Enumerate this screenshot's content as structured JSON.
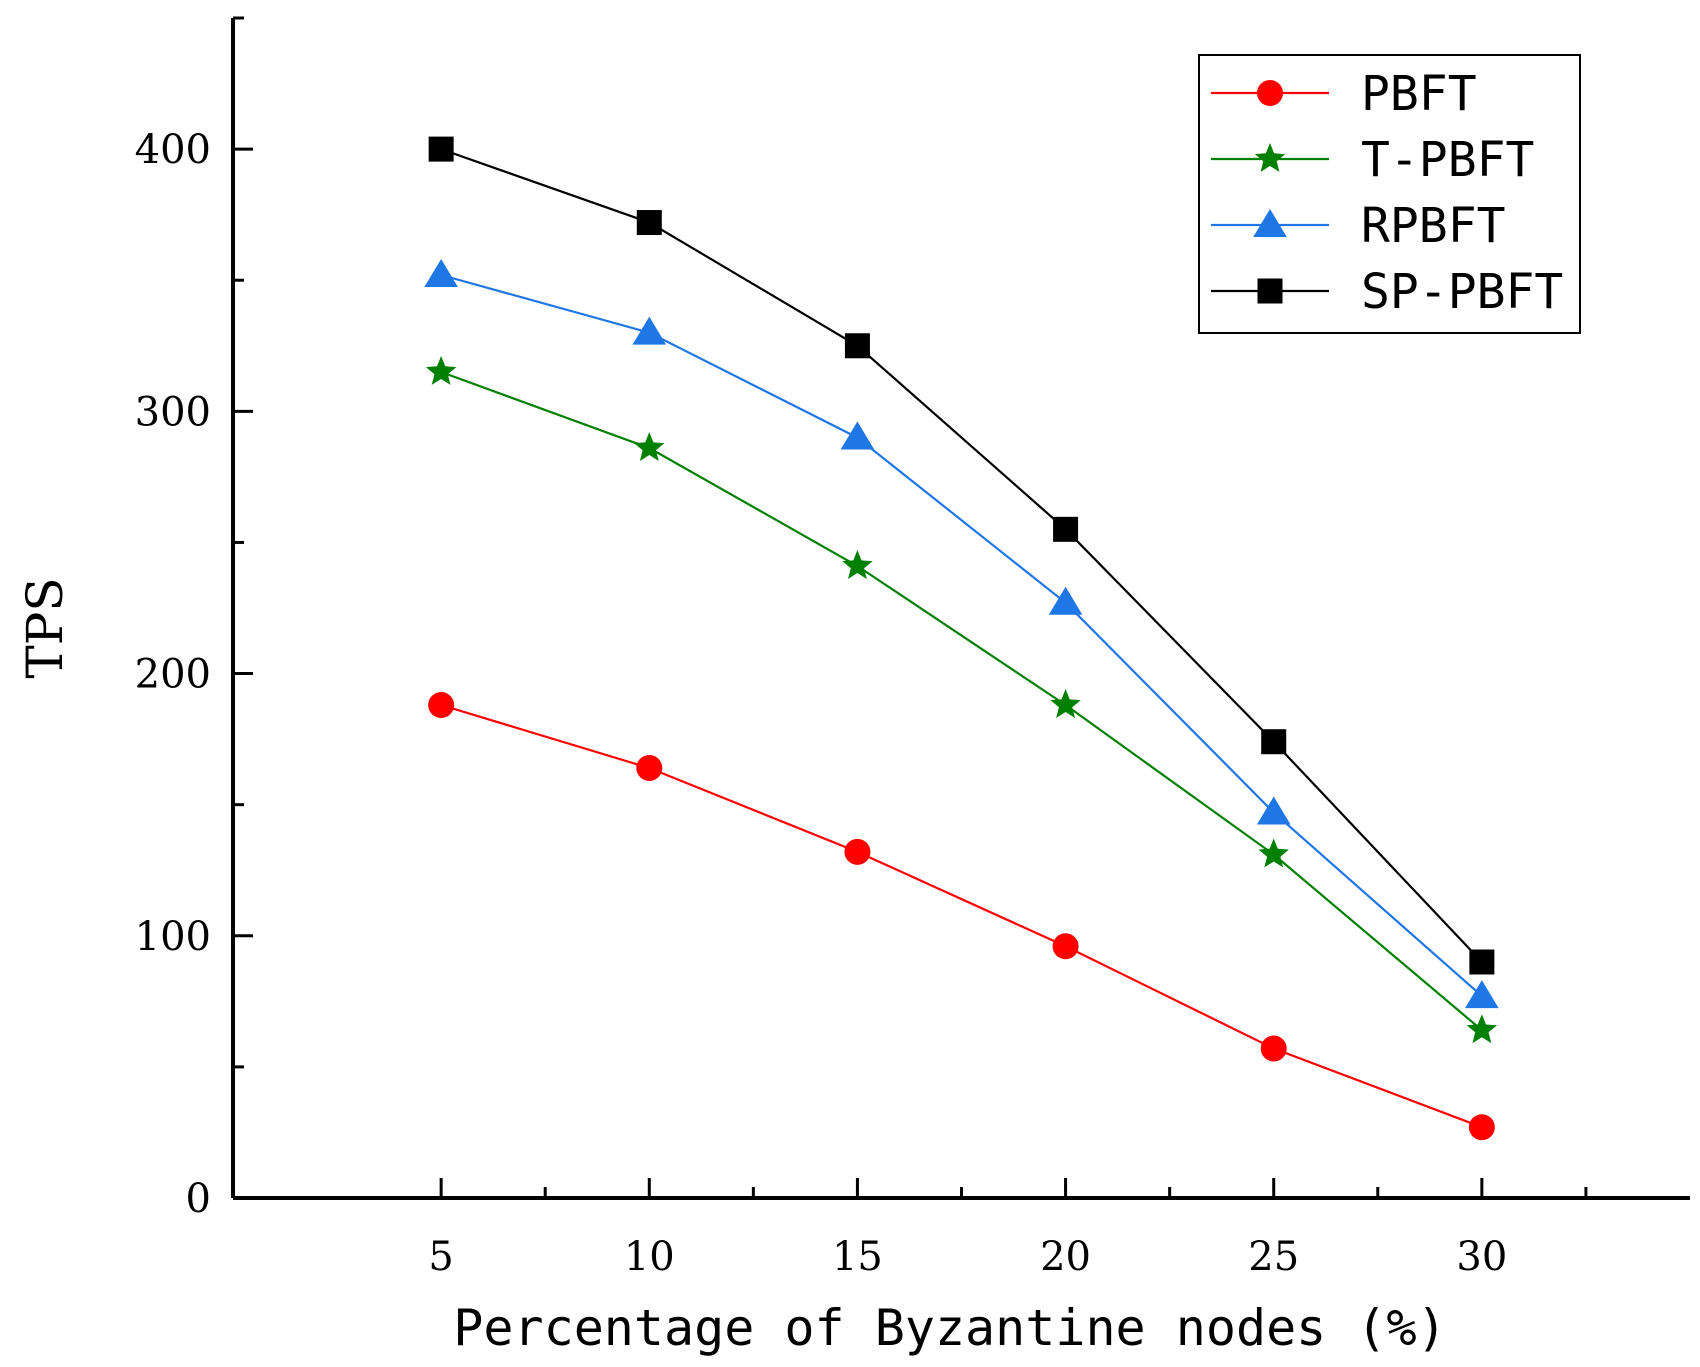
{
  "chart_data": {
    "type": "line",
    "title": "",
    "xlabel": "Percentage of Byzantine nodes (%)",
    "ylabel": "TPS",
    "x": [
      5,
      10,
      15,
      20,
      25,
      30
    ],
    "xticks": [
      "5",
      "10",
      "15",
      "20",
      "25",
      "30"
    ],
    "yticks": [
      "0",
      "100",
      "200",
      "300",
      "400"
    ],
    "xlim": [
      0,
      35
    ],
    "ylim": [
      0,
      450
    ],
    "legend_position": "top-right",
    "series": [
      {
        "name": "PBFT",
        "values": [
          188,
          164,
          132,
          96,
          57,
          27
        ],
        "color": "#ff0000",
        "marker": "circle"
      },
      {
        "name": "T-PBFT",
        "values": [
          315,
          286,
          241,
          188,
          131,
          64
        ],
        "color": "#008000",
        "marker": "star"
      },
      {
        "name": "RPBFT",
        "values": [
          352,
          330,
          290,
          227,
          147,
          77
        ],
        "color": "#1f77e6",
        "marker": "triangle"
      },
      {
        "name": "SP-PBFT",
        "values": [
          400,
          372,
          325,
          255,
          174,
          90
        ],
        "color": "#000000",
        "marker": "square"
      }
    ]
  }
}
